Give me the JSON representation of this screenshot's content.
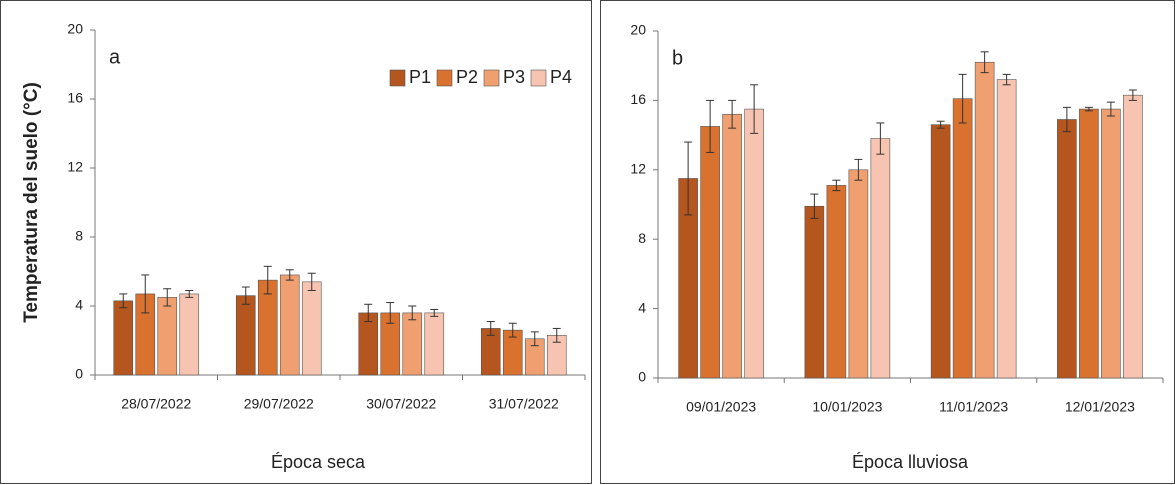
{
  "chart_data": [
    {
      "type": "bar",
      "annotation": "a",
      "y_label": "Temperatura del suelo (°C)",
      "x_label": "Época seca",
      "categories": [
        "28/07/2022",
        "29/07/2022",
        "30/07/2022",
        "31/07/2022"
      ],
      "ylim": [
        0,
        20
      ],
      "yticks": [
        0,
        4,
        8,
        12,
        16,
        20
      ],
      "legend": "top-right",
      "series": [
        {
          "name": "P1",
          "color": "#b5561f",
          "values": [
            4.3,
            4.6,
            3.6,
            2.7
          ],
          "errors": [
            0.4,
            0.5,
            0.5,
            0.4
          ]
        },
        {
          "name": "P2",
          "color": "#d9712f",
          "values": [
            4.7,
            5.5,
            3.6,
            2.6
          ],
          "errors": [
            1.1,
            0.8,
            0.6,
            0.4
          ]
        },
        {
          "name": "P3",
          "color": "#f0a070",
          "values": [
            4.5,
            5.8,
            3.6,
            2.1
          ],
          "errors": [
            0.5,
            0.3,
            0.4,
            0.4
          ]
        },
        {
          "name": "P4",
          "color": "#f6c4b0",
          "values": [
            4.7,
            5.4,
            3.6,
            2.3
          ],
          "errors": [
            0.2,
            0.5,
            0.2,
            0.4
          ]
        }
      ]
    },
    {
      "type": "bar",
      "annotation": "b",
      "x_label": "Época lluviosa",
      "categories": [
        "09/01/2023",
        "10/01/2023",
        "11/01/2023",
        "12/01/2023"
      ],
      "ylim": [
        0,
        20
      ],
      "yticks": [
        0,
        4,
        8,
        12,
        16,
        20
      ],
      "series": [
        {
          "color": "#b5561f",
          "values": [
            11.5,
            9.9,
            14.6,
            14.9
          ],
          "errors": [
            2.1,
            0.7,
            0.2,
            0.7
          ]
        },
        {
          "color": "#d9712f",
          "values": [
            14.5,
            11.1,
            16.1,
            15.5
          ],
          "errors": [
            1.5,
            0.3,
            1.4,
            0.1
          ]
        },
        {
          "color": "#f0a070",
          "values": [
            15.2,
            12.0,
            18.2,
            15.5
          ],
          "errors": [
            0.8,
            0.6,
            0.6,
            0.4
          ]
        },
        {
          "color": "#f6c4b0",
          "values": [
            15.5,
            13.8,
            17.2,
            16.3
          ],
          "errors": [
            1.4,
            0.9,
            0.3,
            0.3
          ]
        }
      ]
    }
  ]
}
